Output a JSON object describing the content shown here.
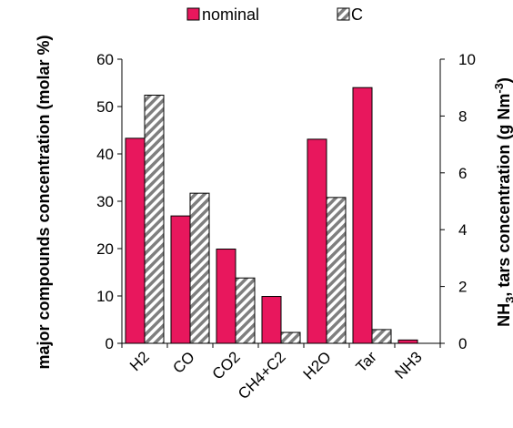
{
  "chart_data": {
    "type": "bar",
    "categories": [
      "H2",
      "CO",
      "CO2",
      "CH4+C2",
      "H2O",
      "Tar",
      "NH3"
    ],
    "series": [
      {
        "name": "nominal",
        "values": [
          43.3,
          26.9,
          19.9,
          9.9,
          43.1,
          54.0,
          0.7
        ],
        "color": "#e8175d",
        "pattern": "solid"
      },
      {
        "name": "C",
        "values": [
          52.4,
          31.7,
          13.8,
          2.3,
          30.8,
          2.9,
          0.0
        ],
        "color": "#ffffff",
        "pattern": "diagonal-hatch"
      }
    ],
    "ylabel": "major compounds concentration (molar %)",
    "ylim": [
      0,
      60
    ],
    "yticks": [
      0,
      10,
      20,
      30,
      40,
      50,
      60
    ],
    "y2label": "NH3, tars concentration (g Nm-3)",
    "y2lim": [
      0,
      10
    ],
    "y2ticks": [
      0,
      2,
      4,
      6,
      8,
      10
    ],
    "legend_position": "top",
    "grid": false
  }
}
